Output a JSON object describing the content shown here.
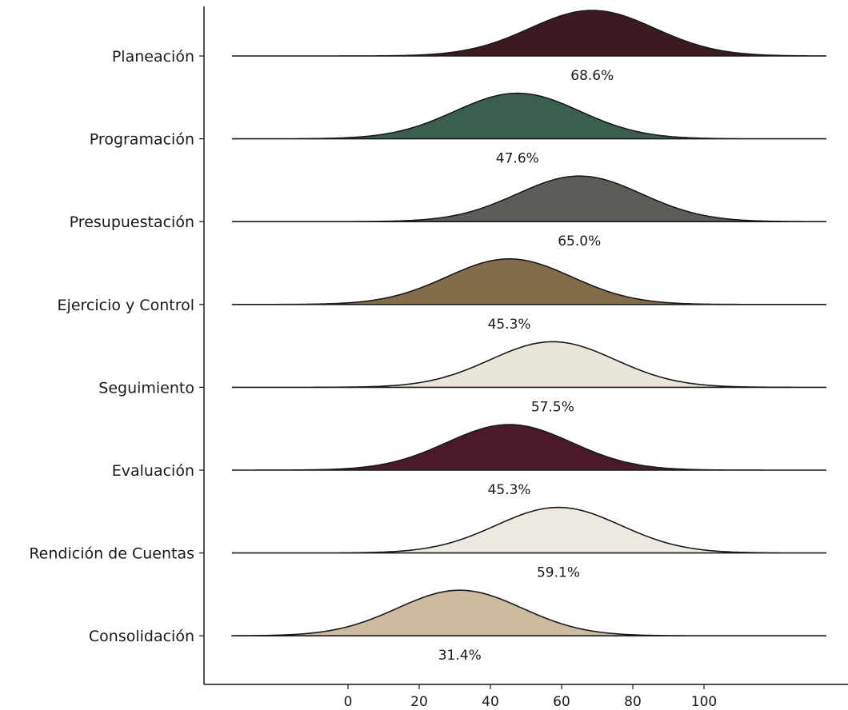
{
  "chart_data": {
    "type": "ridgeline",
    "xlabel": "",
    "ylabel": "",
    "x_ticks": [
      0,
      20,
      40,
      60,
      80,
      100
    ],
    "grid": false,
    "legend": "none",
    "series": [
      {
        "category": "Planeación",
        "peak": 68.6,
        "label": "68.6%",
        "color": "#3b1a20"
      },
      {
        "category": "Programación",
        "peak": 47.6,
        "label": "47.6%",
        "color": "#3b5e4f"
      },
      {
        "category": "Presupuestación",
        "peak": 65.0,
        "label": "65.0%",
        "color": "#5c5c58"
      },
      {
        "category": "Ejercicio y Control",
        "peak": 45.3,
        "label": "45.3%",
        "color": "#846c4b"
      },
      {
        "category": "Seguimiento",
        "peak": 57.5,
        "label": "57.5%",
        "color": "#e9e6d9"
      },
      {
        "category": "Evaluación",
        "peak": 45.3,
        "label": "45.3%",
        "color": "#4a1a2b"
      },
      {
        "category": "Rendición de Cuentas",
        "peak": 59.1,
        "label": "59.1%",
        "color": "#ede8e2"
      },
      {
        "category": "Consolidación",
        "peak": 31.4,
        "label": "31.4%",
        "color": "#cdbba1"
      }
    ]
  }
}
